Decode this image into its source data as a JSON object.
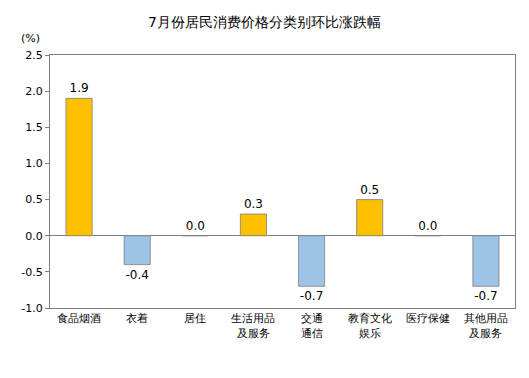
{
  "chart_data": {
    "type": "bar",
    "title": "7月份居民消费价格分类别环比涨跌幅",
    "y_label": "(%)",
    "categories": [
      "食品烟酒",
      "衣着",
      "居住",
      "生活用品\n及服务",
      "交通\n通信",
      "教育文化\n娱乐",
      "医疗保健",
      "其他用品\n及服务"
    ],
    "values": [
      1.9,
      -0.4,
      0.0,
      0.3,
      -0.7,
      0.5,
      0.0,
      -0.7
    ],
    "value_labels": [
      "1.9",
      "-0.4",
      "0.0",
      "0.3",
      "-0.7",
      "0.5",
      "0.0",
      "-0.7"
    ],
    "colors": [
      "#FFC000",
      "#9DC3E6",
      "#FFC000",
      "#FFC000",
      "#9DC3E6",
      "#FFC000",
      "#FFC000",
      "#9DC3E6"
    ],
    "ylim": [
      -1.0,
      2.5
    ],
    "yticks": [
      {
        "value": -1.0,
        "label": "-1.0"
      },
      -0.5,
      {
        "value": 0.0,
        "label": "0.0"
      },
      0.5,
      {
        "value": 1.0,
        "label": "1.0"
      },
      1.5,
      {
        "value": 2.0,
        "label": "2.0"
      },
      2.5
    ],
    "grid": false,
    "data_labels": true
  }
}
